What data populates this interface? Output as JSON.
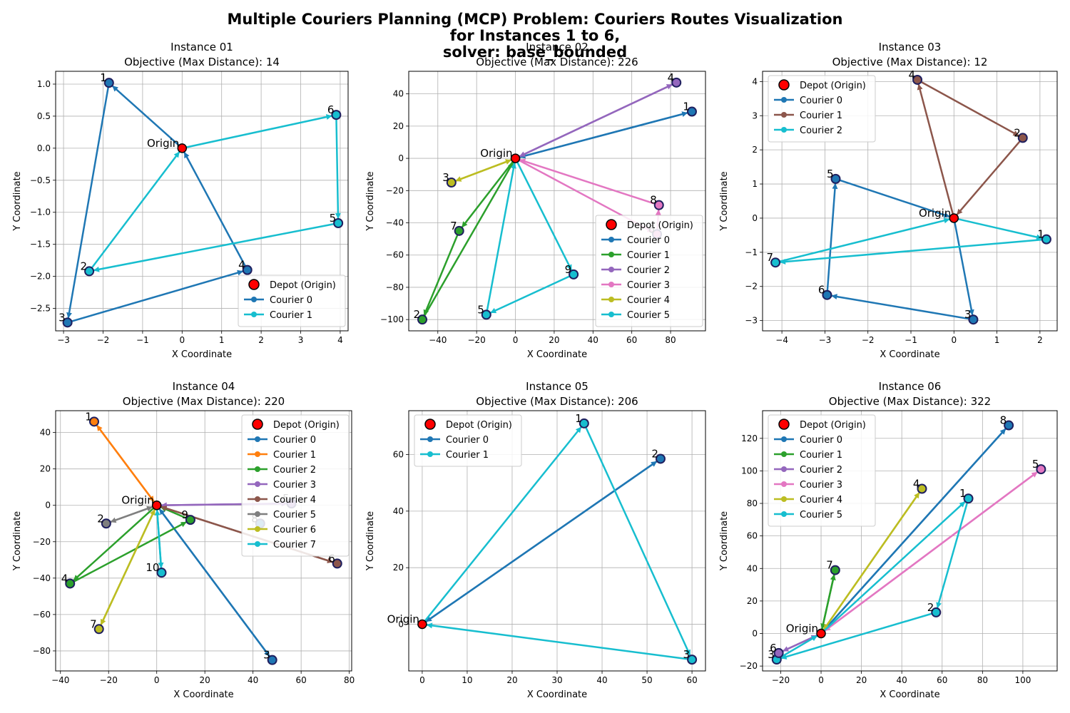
{
  "suptitle": "Multiple Couriers Planning (MCP) Problem: Couriers Routes Visualization\nfor Instances 1 to 6,\nsolver: base_bounded",
  "colors": [
    "#1f77b4",
    "#ff7f0e",
    "#2ca02c",
    "#9467bd",
    "#8c564b",
    "#7f7f7f",
    "#bcbd22",
    "#17becf",
    "#e377c2"
  ],
  "depot_color": "#ff0000",
  "chart_data": [
    {
      "type": "line",
      "title": "Instance 01\nObjective (Max Distance): 14",
      "xlabel": "X Coordinate",
      "ylabel": "Y Coordinate",
      "xlim": [
        -3.2,
        4.2
      ],
      "ylim": [
        -2.85,
        1.2
      ],
      "xticks": [
        -3,
        -2,
        -1,
        0,
        1,
        2,
        3,
        4
      ],
      "yticks": [
        -2.5,
        -2.0,
        -1.5,
        -1.0,
        -0.5,
        0.0,
        0.5,
        1.0
      ],
      "grid": true,
      "legend_loc": "lower-right",
      "depot_label": "Depot (Origin)",
      "origin_label": "Origin",
      "points": [
        {
          "id": "1",
          "x": -1.85,
          "y": 1.02
        },
        {
          "id": "2",
          "x": -2.35,
          "y": -1.92
        },
        {
          "id": "3",
          "x": -2.9,
          "y": -2.72
        },
        {
          "id": "4",
          "x": 1.65,
          "y": -1.9
        },
        {
          "id": "5",
          "x": 3.95,
          "y": -1.17
        },
        {
          "id": "6",
          "x": 3.9,
          "y": 0.52
        }
      ],
      "series": [
        {
          "name": "Courier 0",
          "color_index": 0,
          "route": [
            "0",
            "1",
            "3",
            "4",
            "0"
          ]
        },
        {
          "name": "Courier 1",
          "color_index": 7,
          "route": [
            "0",
            "6",
            "5",
            "2",
            "0"
          ]
        }
      ]
    },
    {
      "type": "line",
      "title": "Instance 02\nObjective (Max Distance): 226",
      "xlabel": "X Coordinate",
      "ylabel": "Y Coordinate",
      "xlim": [
        -55,
        98
      ],
      "ylim": [
        -107,
        54
      ],
      "xticks": [
        -40,
        -20,
        0,
        20,
        40,
        60,
        80
      ],
      "yticks": [
        -100,
        -80,
        -60,
        -40,
        -20,
        0,
        20,
        40
      ],
      "grid": true,
      "legend_loc": "lower-right",
      "depot_label": "Depot (Origin)",
      "origin_label": "Origin",
      "points": [
        {
          "id": "1",
          "x": 91,
          "y": 29
        },
        {
          "id": "2",
          "x": -48,
          "y": -100
        },
        {
          "id": "3",
          "x": -33,
          "y": -15
        },
        {
          "id": "4",
          "x": 83,
          "y": 47
        },
        {
          "id": "5",
          "x": -15,
          "y": -97
        },
        {
          "id": "6",
          "x": 73,
          "y": -47
        },
        {
          "id": "7",
          "x": -29,
          "y": -45
        },
        {
          "id": "8",
          "x": 74,
          "y": -29
        },
        {
          "id": "9",
          "x": 30,
          "y": -72
        }
      ],
      "series": [
        {
          "name": "Courier 0",
          "color_index": 0,
          "route": [
            "0",
            "1",
            "0"
          ]
        },
        {
          "name": "Courier 1",
          "color_index": 2,
          "route": [
            "0",
            "7",
            "2",
            "0"
          ]
        },
        {
          "name": "Courier 2",
          "color_index": 3,
          "route": [
            "0",
            "4",
            "0"
          ]
        },
        {
          "name": "Courier 3",
          "color_index": 8,
          "route": [
            "0",
            "6",
            "8",
            "0"
          ]
        },
        {
          "name": "Courier 4",
          "color_index": 6,
          "route": [
            "0",
            "3",
            "0"
          ]
        },
        {
          "name": "Courier 5",
          "color_index": 7,
          "route": [
            "0",
            "9",
            "5",
            "0"
          ]
        }
      ]
    },
    {
      "type": "line",
      "title": "Instance 03\nObjective (Max Distance): 12",
      "xlabel": "X Coordinate",
      "ylabel": "Y Coordinate",
      "xlim": [
        -4.45,
        2.4
      ],
      "ylim": [
        -3.3,
        4.3
      ],
      "xticks": [
        -4,
        -3,
        -2,
        -1,
        0,
        1,
        2
      ],
      "yticks": [
        -3,
        -2,
        -1,
        0,
        1,
        2,
        3,
        4
      ],
      "grid": true,
      "legend_loc": "upper-left",
      "depot_label": "Depot (Origin)",
      "origin_label": "Origin",
      "points": [
        {
          "id": "1",
          "x": 2.15,
          "y": -0.62
        },
        {
          "id": "2",
          "x": 1.6,
          "y": 2.35
        },
        {
          "id": "3",
          "x": 0.45,
          "y": -2.97
        },
        {
          "id": "4",
          "x": -0.85,
          "y": 4.05
        },
        {
          "id": "5",
          "x": -2.75,
          "y": 1.15
        },
        {
          "id": "6",
          "x": -2.95,
          "y": -2.25
        },
        {
          "id": "7",
          "x": -4.15,
          "y": -1.3
        }
      ],
      "series": [
        {
          "name": "Courier 0",
          "color_index": 0,
          "route": [
            "0",
            "3",
            "6",
            "5",
            "0"
          ]
        },
        {
          "name": "Courier 1",
          "color_index": 4,
          "route": [
            "0",
            "4",
            "2",
            "0"
          ]
        },
        {
          "name": "Courier 2",
          "color_index": 7,
          "route": [
            "0",
            "1",
            "7",
            "0"
          ]
        }
      ]
    },
    {
      "type": "line",
      "title": "Instance 04\nObjective (Max Distance): 220",
      "xlabel": "X Coordinate",
      "ylabel": "Y Coordinate",
      "xlim": [
        -42,
        81
      ],
      "ylim": [
        -91,
        52
      ],
      "xticks": [
        -40,
        -20,
        0,
        20,
        40,
        60,
        80
      ],
      "yticks": [
        -80,
        -60,
        -40,
        -20,
        0,
        20,
        40
      ],
      "grid": true,
      "legend_loc": "upper-right",
      "depot_label": "Depot (Origin)",
      "origin_label": "Origin",
      "points": [
        {
          "id": "1",
          "x": -26,
          "y": 46
        },
        {
          "id": "2",
          "x": -21,
          "y": -10
        },
        {
          "id": "3",
          "x": 48,
          "y": -85
        },
        {
          "id": "4",
          "x": -36,
          "y": -43
        },
        {
          "id": "5",
          "x": 56,
          "y": 1
        },
        {
          "id": "6",
          "x": 75,
          "y": -32
        },
        {
          "id": "7",
          "x": -24,
          "y": -68
        },
        {
          "id": "8",
          "x": 43,
          "y": -10
        },
        {
          "id": "9",
          "x": 14,
          "y": -8
        },
        {
          "id": "10",
          "x": 2,
          "y": -37
        }
      ],
      "series": [
        {
          "name": "Courier 0",
          "color_index": 0,
          "route": [
            "0",
            "3",
            "0"
          ]
        },
        {
          "name": "Courier 1",
          "color_index": 1,
          "route": [
            "0",
            "1",
            "0"
          ]
        },
        {
          "name": "Courier 2",
          "color_index": 2,
          "route": [
            "0",
            "4",
            "9",
            "0"
          ]
        },
        {
          "name": "Courier 3",
          "color_index": 3,
          "route": [
            "0",
            "5",
            "0"
          ]
        },
        {
          "name": "Courier 4",
          "color_index": 4,
          "route": [
            "0",
            "6",
            "0"
          ]
        },
        {
          "name": "Courier 5",
          "color_index": 5,
          "route": [
            "0",
            "2",
            "0"
          ]
        },
        {
          "name": "Courier 6",
          "color_index": 6,
          "route": [
            "0",
            "7",
            "0"
          ]
        },
        {
          "name": "Courier 7",
          "color_index": 7,
          "route": [
            "0",
            "10",
            "0"
          ]
        }
      ]
    },
    {
      "type": "line",
      "title": "Instance 05\nObjective (Max Distance): 206",
      "xlabel": "X Coordinate",
      "ylabel": "Y Coordinate",
      "xlim": [
        -3,
        63
      ],
      "ylim": [
        -16.5,
        75.5
      ],
      "xticks": [
        0,
        10,
        20,
        30,
        40,
        50,
        60
      ],
      "yticks": [
        0,
        20,
        40,
        60
      ],
      "grid": true,
      "legend_loc": "upper-left",
      "depot_label": "Depot (Origin)",
      "origin_label": "Origin",
      "points": [
        {
          "id": "1",
          "x": 36,
          "y": 71
        },
        {
          "id": "2",
          "x": 53,
          "y": 58.5
        },
        {
          "id": "3",
          "x": 60,
          "y": -12.5
        }
      ],
      "series": [
        {
          "name": "Courier 0",
          "color_index": 0,
          "route": [
            "0",
            "2",
            "0"
          ]
        },
        {
          "name": "Courier 1",
          "color_index": 7,
          "route": [
            "0",
            "1",
            "3",
            "0"
          ]
        }
      ]
    },
    {
      "type": "line",
      "title": "Instance 06\nObjective (Max Distance): 322",
      "xlabel": "X Coordinate",
      "ylabel": "Y Coordinate",
      "xlim": [
        -29,
        117
      ],
      "ylim": [
        -23,
        137
      ],
      "xticks": [
        -20,
        0,
        20,
        40,
        60,
        80,
        100
      ],
      "yticks": [
        -20,
        0,
        20,
        40,
        60,
        80,
        100,
        120
      ],
      "grid": true,
      "legend_loc": "upper-left",
      "depot_label": "Depot (Origin)",
      "origin_label": "Origin",
      "points": [
        {
          "id": "1",
          "x": 73,
          "y": 83
        },
        {
          "id": "2",
          "x": 57,
          "y": 13
        },
        {
          "id": "3",
          "x": -22,
          "y": -16
        },
        {
          "id": "4",
          "x": 50,
          "y": 89
        },
        {
          "id": "5",
          "x": 109,
          "y": 101
        },
        {
          "id": "6",
          "x": -21,
          "y": -12
        },
        {
          "id": "7",
          "x": 7,
          "y": 39
        },
        {
          "id": "8",
          "x": 93,
          "y": 128
        }
      ],
      "series": [
        {
          "name": "Courier 0",
          "color_index": 0,
          "route": [
            "0",
            "8",
            "0"
          ]
        },
        {
          "name": "Courier 1",
          "color_index": 2,
          "route": [
            "0",
            "7",
            "0"
          ]
        },
        {
          "name": "Courier 2",
          "color_index": 3,
          "route": [
            "0",
            "6",
            "0"
          ]
        },
        {
          "name": "Courier 3",
          "color_index": 8,
          "route": [
            "0",
            "5",
            "0"
          ]
        },
        {
          "name": "Courier 4",
          "color_index": 6,
          "route": [
            "0",
            "4",
            "0"
          ]
        },
        {
          "name": "Courier 5",
          "color_index": 7,
          "route": [
            "0",
            "1",
            "2",
            "3",
            "0"
          ]
        }
      ]
    }
  ]
}
